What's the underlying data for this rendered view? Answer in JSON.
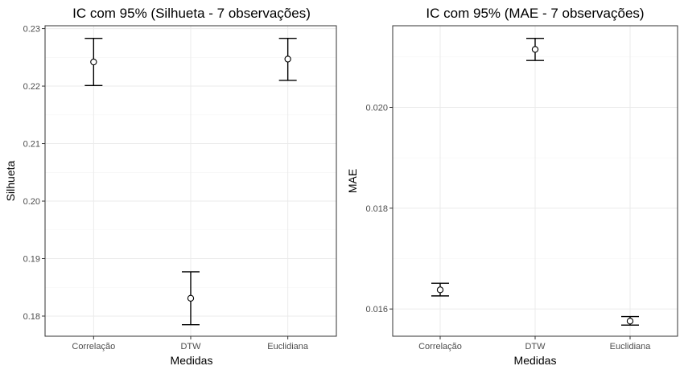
{
  "chart_data": [
    {
      "type": "errorbar",
      "title": "IC com 95% (Silhueta - 7 observações)",
      "xlabel": "Medidas",
      "ylabel": "Silhueta",
      "categories": [
        "Correlação",
        "DTW",
        "Euclidiana"
      ],
      "points": [
        {
          "category": "Correlação",
          "mean": 0.2242,
          "lower": 0.2201,
          "upper": 0.2283
        },
        {
          "category": "DTW",
          "mean": 0.1831,
          "lower": 0.1785,
          "upper": 0.1877
        },
        {
          "category": "Euclidiana",
          "mean": 0.2247,
          "lower": 0.221,
          "upper": 0.2283
        }
      ],
      "ylim": [
        0.1765,
        0.2305
      ],
      "yticks": [
        0.18,
        0.19,
        0.2,
        0.21,
        0.22,
        0.23
      ],
      "ytick_labels": [
        "0.18",
        "0.19",
        "0.20",
        "0.21",
        "0.22",
        "0.23"
      ],
      "grid": true
    },
    {
      "type": "errorbar",
      "title": "IC com 95% (MAE - 7 observações)",
      "xlabel": "Medidas",
      "ylabel": "MAE",
      "categories": [
        "Correlação",
        "DTW",
        "Euclidiana"
      ],
      "points": [
        {
          "category": "Correlação",
          "mean": 0.01638,
          "lower": 0.01626,
          "upper": 0.01651
        },
        {
          "category": "DTW",
          "mean": 0.02115,
          "lower": 0.02093,
          "upper": 0.02137
        },
        {
          "category": "Euclidiana",
          "mean": 0.01576,
          "lower": 0.01568,
          "upper": 0.01585
        }
      ],
      "ylim": [
        0.01546,
        0.02162
      ],
      "yticks": [
        0.016,
        0.018,
        0.02
      ],
      "ytick_labels": [
        "0.016",
        "0.018",
        "0.020"
      ],
      "grid": true
    }
  ]
}
